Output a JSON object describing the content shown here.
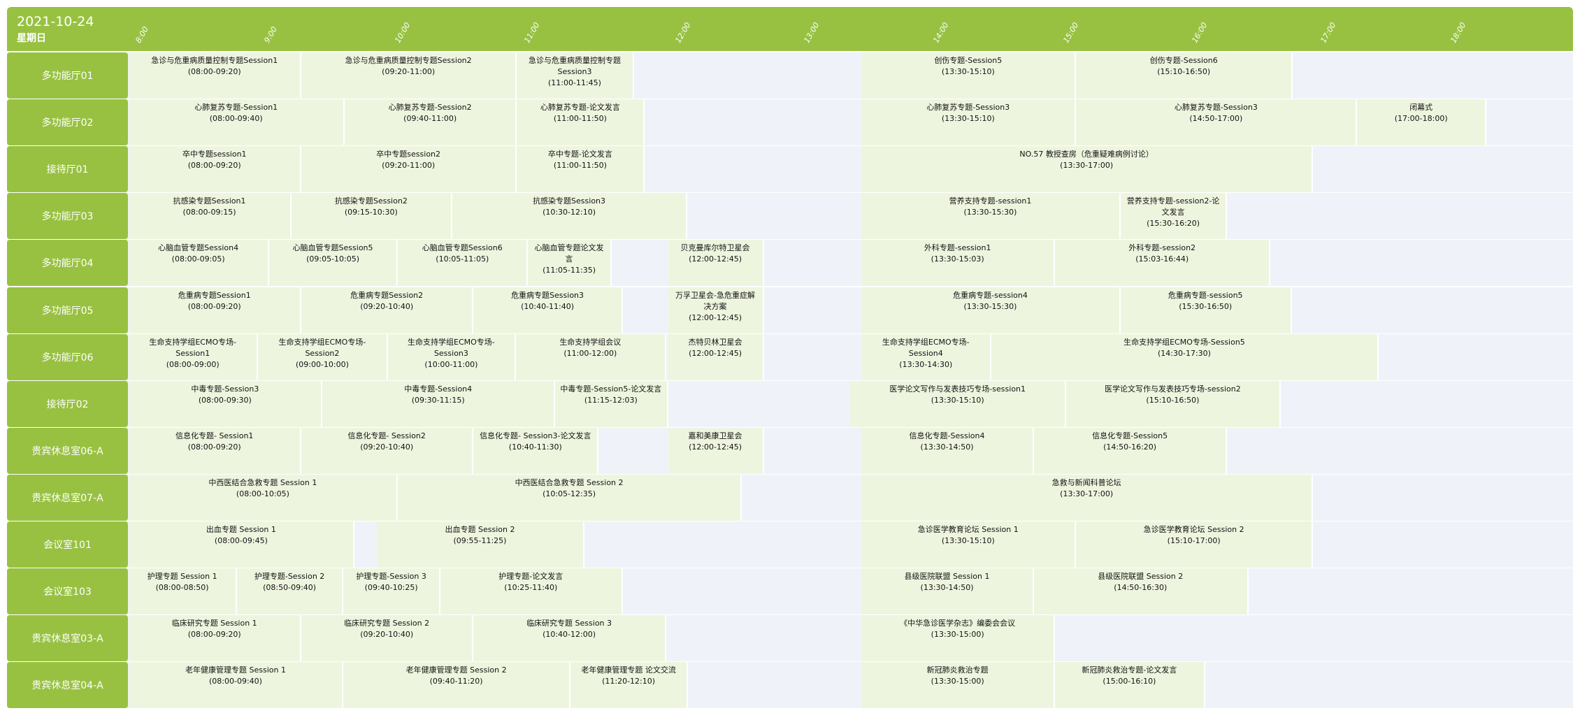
{
  "header": {
    "date": "2021-10-24",
    "weekday": "星期日"
  },
  "ticks": [
    "8:00",
    "9:00",
    "10:00",
    "11:00",
    "12:00",
    "13:00",
    "14:00",
    "15:00",
    "16:00",
    "17:00",
    "18:00"
  ],
  "colors": {
    "accent": "#98c142",
    "event_bg": "#eef5df",
    "empty_bg": "#eff3f9"
  },
  "rows": [
    {
      "room": "多功能厅01",
      "events": [
        {
          "title": "急诊与危重病质量控制专题Session1",
          "time": "(08:00-09:20)"
        },
        {
          "title": "急诊与危重病质量控制专题Session2",
          "time": "(09:20-11:00)"
        },
        {
          "title": "急诊与危重病质量控制专题Session3",
          "time": "(11:00-11:45)"
        },
        {
          "title": "创伤专题-Session5",
          "time": "(13:30-15:10)"
        },
        {
          "title": "创伤专题-Session6",
          "time": "(15:10-16:50)"
        }
      ]
    },
    {
      "room": "多功能厅02",
      "events": [
        {
          "title": "心肺复苏专题-Session1",
          "time": "(08:00-09:40)"
        },
        {
          "title": "心肺复苏专题-Session2",
          "time": "(09:40-11:00)"
        },
        {
          "title": "心肺复苏专题-论文发言",
          "time": "(11:00-11:50)"
        },
        {
          "title": "心肺复苏专题-Session3",
          "time": "(13:30-15:10)"
        },
        {
          "title": "心肺复苏专题-Session3",
          "time": "(14:50-17:00)"
        },
        {
          "title": "闭幕式",
          "time": "(17:00-18:00)"
        }
      ]
    },
    {
      "room": "接待厅01",
      "events": [
        {
          "title": "卒中专题session1",
          "time": "(08:00-09:20)"
        },
        {
          "title": "卒中专题session2",
          "time": "(09:20-11:00)"
        },
        {
          "title": "卒中专题-论文发言",
          "time": "(11:00-11:50)"
        },
        {
          "title": "NO.57 教授查房（危重疑难病例讨论）",
          "time": "(13:30-17:00)"
        }
      ]
    },
    {
      "room": "多功能厅03",
      "events": [
        {
          "title": "抗感染专题Session1",
          "time": "(08:00-09:15)"
        },
        {
          "title": "抗感染专题Session2",
          "time": "(09:15-10:30)"
        },
        {
          "title": "抗感染专题Session3",
          "time": "(10:30-12:10)"
        },
        {
          "title": "营养支持专题-session1",
          "time": "(13:30-15:30)"
        },
        {
          "title": "营养支持专题-session2-论文发言",
          "time": "(15:30-16:20)"
        }
      ]
    },
    {
      "room": "多功能厅04",
      "events": [
        {
          "title": "心脑血管专题Session4",
          "time": "(08:00-09:05)"
        },
        {
          "title": "心脑血管专题Session5",
          "time": "(09:05-10:05)"
        },
        {
          "title": "心脑血管专题Session6",
          "time": "(10:05-11:05)"
        },
        {
          "title": "心脑血管专题论文发言",
          "time": "(11:05-11:35)"
        },
        {
          "title": "贝克曼库尔特卫星会",
          "time": "(12:00-12:45)"
        },
        {
          "title": "外科专题-session1",
          "time": "(13:30-15:03)"
        },
        {
          "title": "外科专题-session2",
          "time": "(15:03-16:44)"
        }
      ]
    },
    {
      "room": "多功能厅05",
      "events": [
        {
          "title": "危重病专题Session1",
          "time": "(08:00-09:20)"
        },
        {
          "title": "危重病专题Session2",
          "time": "(09:20-10:40)"
        },
        {
          "title": "危重病专题Session3",
          "time": "(10:40-11:40)"
        },
        {
          "title": "万孚卫星会-急危重症解决方案",
          "time": "(12:00-12:45)"
        },
        {
          "title": "危重病专题-session4",
          "time": "(13:30-15:30)"
        },
        {
          "title": "危重病专题-session5",
          "time": "(15:30-16:50)"
        }
      ]
    },
    {
      "room": "多功能厅06",
      "events": [
        {
          "title": "生命支持学组ECMO专场-Session1",
          "time": "(08:00-09:00)"
        },
        {
          "title": "生命支持学组ECMO专场-Session2",
          "time": "(09:00-10:00)"
        },
        {
          "title": "生命支持学组ECMO专场-Session3",
          "time": "(10:00-11:00)"
        },
        {
          "title": "生命支持学组会议",
          "time": "(11:00-12:00)"
        },
        {
          "title": "杰特贝林卫星会",
          "time": "(12:00-12:45)"
        },
        {
          "title": "生命支持学组ECMO专场-Session4",
          "time": "(13:30-14:30)"
        },
        {
          "title": "生命支持学组ECMO专场-Session5",
          "time": "(14:30-17:30)"
        }
      ]
    },
    {
      "room": "接待厅02",
      "events": [
        {
          "title": "中毒专题-Session3",
          "time": "(08:00-09:30)"
        },
        {
          "title": "中毒专题-Session4",
          "time": "(09:30-11:15)"
        },
        {
          "title": "中毒专题-Session5-论文发言",
          "time": "(11:15-12:03)"
        },
        {
          "title": "医学论文写作与发表技巧专场-session1",
          "time": "(13:30-15:10)"
        },
        {
          "title": "医学论文写作与发表技巧专场-session2",
          "time": "(15:10-16:50)"
        }
      ]
    },
    {
      "room": "贵宾休息室06-A",
      "events": [
        {
          "title": "信息化专题- Session1",
          "time": "(08:00-09:20)"
        },
        {
          "title": "信息化专题- Session2",
          "time": "(09:20-10:40)"
        },
        {
          "title": "信息化专题- Session3-论文发言",
          "time": "(10:40-11:30)"
        },
        {
          "title": "嘉和美康卫星会",
          "time": "(12:00-12:45)"
        },
        {
          "title": "信息化专题-Session4",
          "time": "(13:30-14:50)"
        },
        {
          "title": "信息化专题-Session5",
          "time": "(14:50-16:20)"
        }
      ]
    },
    {
      "room": "贵宾休息室07-A",
      "events": [
        {
          "title": "中西医结合急救专题 Session 1",
          "time": "(08:00-10:05)"
        },
        {
          "title": "中西医结合急救专题 Session 2",
          "time": "(10:05-12:35)"
        },
        {
          "title": "急救与新闻科普论坛",
          "time": "(13:30-17:00)"
        }
      ]
    },
    {
      "room": "会议室101",
      "events": [
        {
          "title": "出血专题 Session 1",
          "time": "(08:00-09:45)"
        },
        {
          "title": "出血专题 Session 2",
          "time": "(09:55-11:25)"
        },
        {
          "title": "急诊医学教育论坛 Session 1",
          "time": "(13:30-15:10)"
        },
        {
          "title": "急诊医学教育论坛 Session 2",
          "time": "(15:10-17:00)"
        }
      ]
    },
    {
      "room": "会议室103",
      "events": [
        {
          "title": "护理专题 Session 1",
          "time": "(08:00-08:50)"
        },
        {
          "title": "护理专题-Session 2",
          "time": "(08:50-09:40)"
        },
        {
          "title": "护理专题-Session 3",
          "time": "(09:40-10:25)"
        },
        {
          "title": "护理专题-论文发言",
          "time": "(10:25-11:40)"
        },
        {
          "title": "县级医院联盟 Session 1",
          "time": "(13:30-14:50)"
        },
        {
          "title": "县级医院联盟 Session 2",
          "time": "(14:50-16:30)"
        }
      ]
    },
    {
      "room": "贵宾休息室03-A",
      "events": [
        {
          "title": "临床研究专题 Session 1",
          "time": "(08:00-09:20)"
        },
        {
          "title": "临床研究专题 Session 2",
          "time": "(09:20-10:40)"
        },
        {
          "title": "临床研究专题 Session 3",
          "time": "(10:40-12:00)"
        },
        {
          "title": "《中华急诊医学杂志》编委会会议",
          "time": "(13:30-15:00)"
        }
      ]
    },
    {
      "room": "贵宾休息室04-A",
      "events": [
        {
          "title": "老年健康管理专题 Session 1",
          "time": "(08:00-09:40)"
        },
        {
          "title": "老年健康管理专题 Session 2",
          "time": "(09:40-11:20)"
        },
        {
          "title": "老年健康管理专题 论文交流",
          "time": "(11:20-12:10)"
        },
        {
          "title": "新冠肺炎救治专题",
          "time": "(13:30-15:00)"
        },
        {
          "title": "新冠肺炎救治专题-论文发言",
          "time": "(15:00-16:10)"
        }
      ]
    }
  ]
}
